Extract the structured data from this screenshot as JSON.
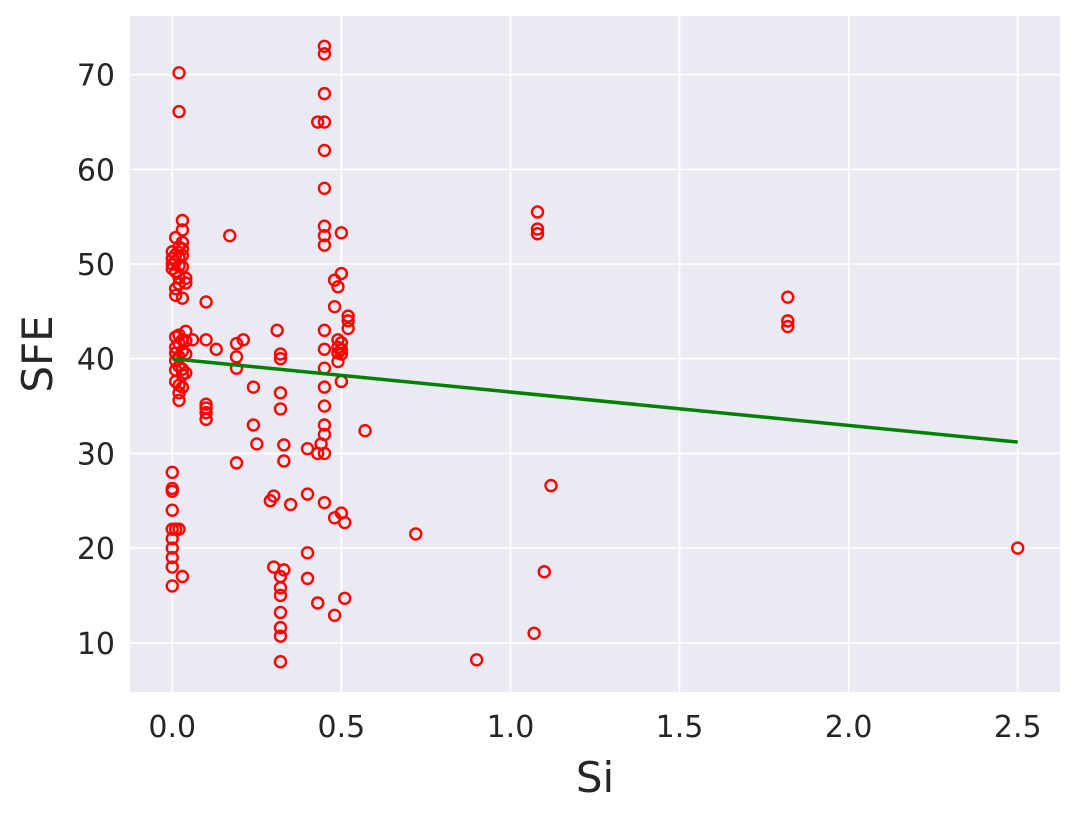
{
  "colors": {
    "plot_background": "#eaeaf2",
    "grid": "#ffffff",
    "points": "#ff0000",
    "fit_line": "#008000"
  },
  "chart_data": {
    "type": "scatter",
    "title": "",
    "xlabel": "Si",
    "ylabel": "SFE",
    "xlim": [
      -0.125,
      2.625
    ],
    "ylim": [
      4.8,
      76.2
    ],
    "x_ticks": [
      0.0,
      0.5,
      1.0,
      1.5,
      2.0,
      2.5
    ],
    "x_tick_labels": [
      "0.0",
      "0.5",
      "1.0",
      "1.5",
      "2.0",
      "2.5"
    ],
    "y_ticks": [
      10,
      20,
      30,
      40,
      50,
      60,
      70
    ],
    "y_tick_labels": [
      "10",
      "20",
      "30",
      "40",
      "50",
      "60",
      "70"
    ],
    "grid": true,
    "legend": "none",
    "series": [
      {
        "marker": "open-circle",
        "color": "#ff0000",
        "points": [
          [
            0.02,
            70.2
          ],
          [
            0.02,
            66.1
          ],
          [
            0.0,
            51.3
          ],
          [
            0.0,
            50.6
          ],
          [
            0.0,
            50.0
          ],
          [
            0.0,
            49.5
          ],
          [
            0.01,
            52.8
          ],
          [
            0.01,
            51.0
          ],
          [
            0.01,
            50.3
          ],
          [
            0.01,
            49.2
          ],
          [
            0.01,
            47.4
          ],
          [
            0.01,
            46.7
          ],
          [
            0.02,
            51.8
          ],
          [
            0.02,
            50.8
          ],
          [
            0.02,
            49.8
          ],
          [
            0.02,
            48.6
          ],
          [
            0.02,
            47.9
          ],
          [
            0.03,
            54.6
          ],
          [
            0.03,
            53.6
          ],
          [
            0.03,
            52.3
          ],
          [
            0.03,
            51.6
          ],
          [
            0.03,
            50.9
          ],
          [
            0.03,
            49.7
          ],
          [
            0.03,
            46.4
          ],
          [
            0.04,
            48.5
          ],
          [
            0.04,
            48.0
          ],
          [
            0.01,
            42.3
          ],
          [
            0.01,
            41.2
          ],
          [
            0.01,
            40.6
          ],
          [
            0.01,
            39.8
          ],
          [
            0.01,
            38.8
          ],
          [
            0.01,
            37.6
          ],
          [
            0.02,
            42.5
          ],
          [
            0.02,
            41.6
          ],
          [
            0.02,
            40.2
          ],
          [
            0.02,
            39.2
          ],
          [
            0.02,
            37.2
          ],
          [
            0.02,
            36.4
          ],
          [
            0.02,
            35.6
          ],
          [
            0.03,
            42.0
          ],
          [
            0.03,
            40.8
          ],
          [
            0.03,
            38.9
          ],
          [
            0.03,
            38.3
          ],
          [
            0.03,
            37.0
          ],
          [
            0.04,
            42.9
          ],
          [
            0.04,
            41.9
          ],
          [
            0.04,
            40.5
          ],
          [
            0.04,
            38.5
          ],
          [
            0.06,
            42.0
          ],
          [
            0.0,
            28.0
          ],
          [
            0.0,
            26.3
          ],
          [
            0.0,
            26.0
          ],
          [
            0.0,
            24.0
          ],
          [
            0.0,
            22.0
          ],
          [
            0.0,
            21.0
          ],
          [
            0.0,
            20.0
          ],
          [
            0.0,
            19.0
          ],
          [
            0.0,
            18.0
          ],
          [
            0.0,
            16.0
          ],
          [
            0.01,
            22.0
          ],
          [
            0.02,
            22.0
          ],
          [
            0.03,
            17.0
          ],
          [
            0.1,
            46.0
          ],
          [
            0.1,
            42.0
          ],
          [
            0.1,
            35.2
          ],
          [
            0.1,
            34.8
          ],
          [
            0.1,
            34.3
          ],
          [
            0.1,
            33.6
          ],
          [
            0.13,
            41.0
          ],
          [
            0.17,
            53.0
          ],
          [
            0.19,
            41.6
          ],
          [
            0.19,
            40.2
          ],
          [
            0.19,
            39.0
          ],
          [
            0.19,
            29.0
          ],
          [
            0.21,
            42.0
          ],
          [
            0.24,
            37.0
          ],
          [
            0.24,
            33.0
          ],
          [
            0.25,
            31.0
          ],
          [
            0.29,
            25.0
          ],
          [
            0.3,
            25.5
          ],
          [
            0.3,
            18.0
          ],
          [
            0.31,
            43.0
          ],
          [
            0.32,
            40.5
          ],
          [
            0.32,
            40.0
          ],
          [
            0.32,
            36.4
          ],
          [
            0.32,
            34.7
          ],
          [
            0.32,
            17.0
          ],
          [
            0.32,
            15.8
          ],
          [
            0.32,
            15.0
          ],
          [
            0.32,
            13.2
          ],
          [
            0.32,
            11.6
          ],
          [
            0.32,
            10.7
          ],
          [
            0.32,
            8.0
          ],
          [
            0.33,
            30.9
          ],
          [
            0.33,
            29.2
          ],
          [
            0.33,
            17.7
          ],
          [
            0.35,
            24.6
          ],
          [
            0.4,
            30.5
          ],
          [
            0.4,
            25.7
          ],
          [
            0.4,
            19.5
          ],
          [
            0.4,
            16.8
          ],
          [
            0.43,
            65.0
          ],
          [
            0.43,
            30.0
          ],
          [
            0.43,
            14.2
          ],
          [
            0.44,
            31.0
          ],
          [
            0.45,
            73.0
          ],
          [
            0.45,
            72.2
          ],
          [
            0.45,
            68.0
          ],
          [
            0.45,
            65.0
          ],
          [
            0.45,
            62.0
          ],
          [
            0.45,
            58.0
          ],
          [
            0.45,
            54.0
          ],
          [
            0.45,
            53.0
          ],
          [
            0.45,
            52.0
          ],
          [
            0.45,
            43.0
          ],
          [
            0.45,
            41.0
          ],
          [
            0.45,
            39.0
          ],
          [
            0.45,
            37.0
          ],
          [
            0.45,
            35.0
          ],
          [
            0.45,
            33.0
          ],
          [
            0.45,
            32.0
          ],
          [
            0.45,
            30.0
          ],
          [
            0.45,
            24.8
          ],
          [
            0.48,
            48.3
          ],
          [
            0.48,
            45.5
          ],
          [
            0.48,
            23.2
          ],
          [
            0.48,
            12.9
          ],
          [
            0.49,
            47.6
          ],
          [
            0.49,
            42.0
          ],
          [
            0.49,
            41.2
          ],
          [
            0.49,
            40.6
          ],
          [
            0.49,
            39.7
          ],
          [
            0.5,
            53.3
          ],
          [
            0.5,
            49.0
          ],
          [
            0.5,
            41.7
          ],
          [
            0.5,
            41.0
          ],
          [
            0.5,
            40.5
          ],
          [
            0.5,
            37.6
          ],
          [
            0.5,
            23.7
          ],
          [
            0.51,
            22.7
          ],
          [
            0.51,
            14.7
          ],
          [
            0.52,
            44.5
          ],
          [
            0.52,
            44.0
          ],
          [
            0.52,
            43.2
          ],
          [
            0.57,
            32.4
          ],
          [
            0.72,
            21.5
          ],
          [
            0.9,
            8.2
          ],
          [
            1.07,
            11.0
          ],
          [
            1.08,
            55.5
          ],
          [
            1.08,
            53.7
          ],
          [
            1.08,
            53.2
          ],
          [
            1.1,
            17.5
          ],
          [
            1.12,
            26.6
          ],
          [
            1.82,
            46.5
          ],
          [
            1.82,
            44.0
          ],
          [
            1.82,
            43.4
          ],
          [
            2.5,
            20.0
          ]
        ]
      }
    ],
    "fit_line": {
      "color": "#008000",
      "x": [
        0.0,
        2.5
      ],
      "y": [
        40.0,
        31.2
      ]
    }
  }
}
